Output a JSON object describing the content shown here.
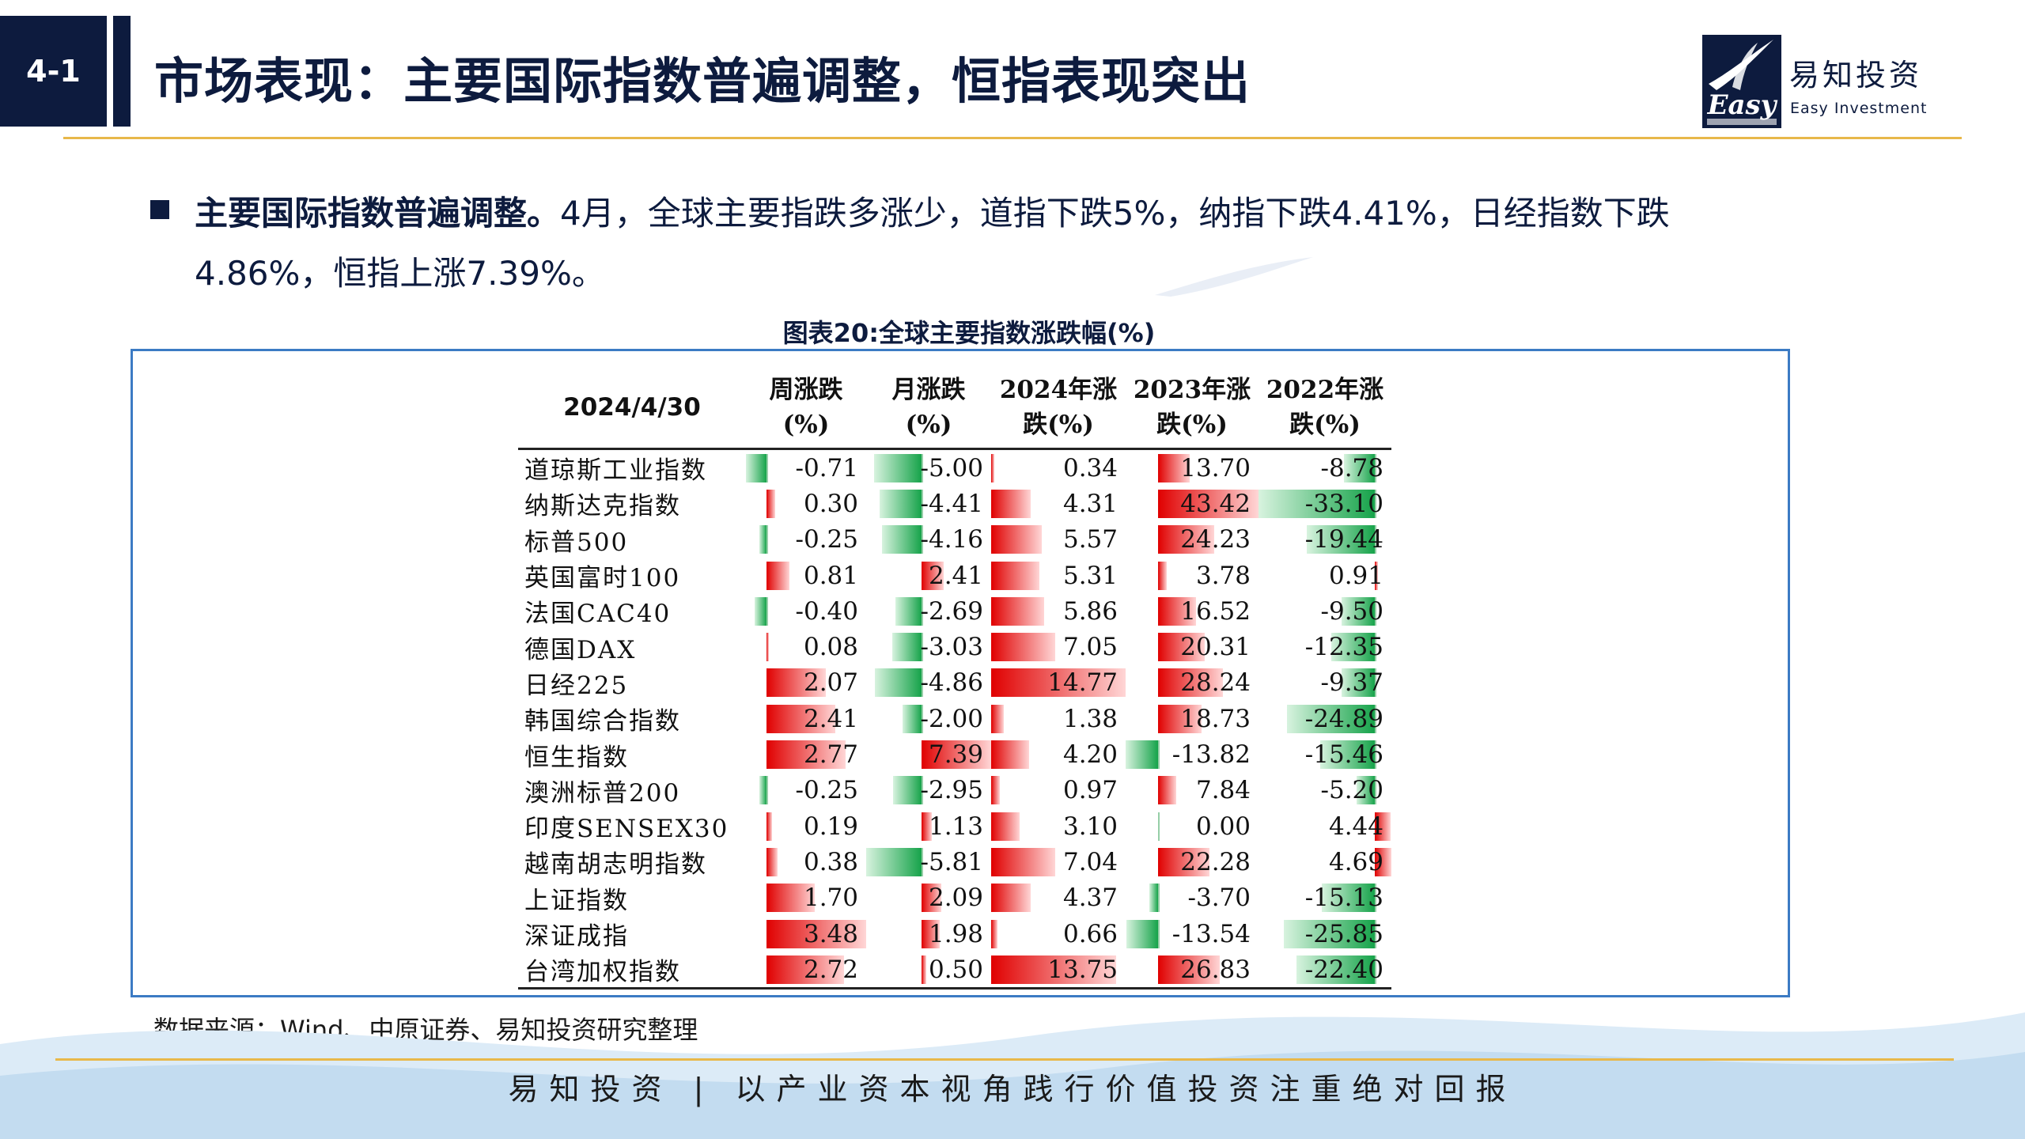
{
  "header": {
    "section_number": "4-1",
    "title": "市场表现：主要国际指数普遍调整，恒指表现突出",
    "logo_cn": "易知投资",
    "logo_en": "Easy Investment",
    "logo_mark_text": "Easy"
  },
  "bullet": {
    "lead": "主要国际指数普遍调整。",
    "body": "4月，全球主要指跌多涨少，道指下跌5%，纳指下跌4.41%，日经指数下跌4.86%，恒指上涨7.39%。"
  },
  "chart_caption": "图表20:全球主要指数涨跌幅(%)",
  "chart_data": {
    "type": "table",
    "columns": [
      "2024/4/30",
      "周涨跌(%)",
      "月涨跌(%)",
      "2024年涨跌(%)",
      "2023年涨跌(%)",
      "2022年涨跌(%)"
    ],
    "column_heads": [
      {
        "line1": "周涨跌",
        "line2": "(%)"
      },
      {
        "line1": "月涨跌",
        "line2": "(%)"
      },
      {
        "line1": "2024年涨",
        "line2": "跌(%)"
      },
      {
        "line1": "2023年涨",
        "line2": "跌(%)"
      },
      {
        "line1": "2022年涨",
        "line2": "跌(%)"
      }
    ],
    "rows": [
      {
        "name": "道琼斯工业指数",
        "values": [
          -0.71,
          -5.0,
          0.34,
          13.7,
          -8.78
        ]
      },
      {
        "name": "纳斯达克指数",
        "values": [
          0.3,
          -4.41,
          4.31,
          43.42,
          -33.1
        ]
      },
      {
        "name": "标普500",
        "values": [
          -0.25,
          -4.16,
          5.57,
          24.23,
          -19.44
        ]
      },
      {
        "name": "英国富时100",
        "values": [
          0.81,
          2.41,
          5.31,
          3.78,
          0.91
        ]
      },
      {
        "name": "法国CAC40",
        "values": [
          -0.4,
          -2.69,
          5.86,
          16.52,
          -9.5
        ]
      },
      {
        "name": "德国DAX",
        "values": [
          0.08,
          -3.03,
          7.05,
          20.31,
          -12.35
        ]
      },
      {
        "name": "日经225",
        "values": [
          2.07,
          -4.86,
          14.77,
          28.24,
          -9.37
        ]
      },
      {
        "name": "韩国综合指数",
        "values": [
          2.41,
          -2.0,
          1.38,
          18.73,
          -24.89
        ]
      },
      {
        "name": "恒生指数",
        "values": [
          2.77,
          7.39,
          4.2,
          -13.82,
          -15.46
        ]
      },
      {
        "name": "澳洲标普200",
        "values": [
          -0.25,
          -2.95,
          0.97,
          7.84,
          -5.2
        ]
      },
      {
        "name": "印度SENSEX30",
        "values": [
          0.19,
          1.13,
          3.1,
          0.0,
          4.44
        ]
      },
      {
        "name": "越南胡志明指数",
        "values": [
          0.38,
          -5.81,
          7.04,
          22.28,
          4.69
        ]
      },
      {
        "name": "上证指数",
        "values": [
          1.7,
          2.09,
          4.37,
          -3.7,
          -15.13
        ]
      },
      {
        "name": "深证成指",
        "values": [
          3.48,
          1.98,
          0.66,
          -13.54,
          -25.85
        ]
      },
      {
        "name": "台湾加权指数",
        "values": [
          2.72,
          0.5,
          13.75,
          26.83,
          -22.4
        ]
      }
    ]
  },
  "source_note": "数据来源：Wind、中原证券、易知投资研究整理",
  "footer": {
    "slogan": "易知投资 | 以产业资本视角践行价值投资注重绝对回报"
  },
  "colors": {
    "navy": "#0d1b3e",
    "gold": "#e8b84a",
    "frame_blue": "#3c7bc4",
    "positive_bar": "#e00000",
    "negative_bar": "#16a34a"
  }
}
